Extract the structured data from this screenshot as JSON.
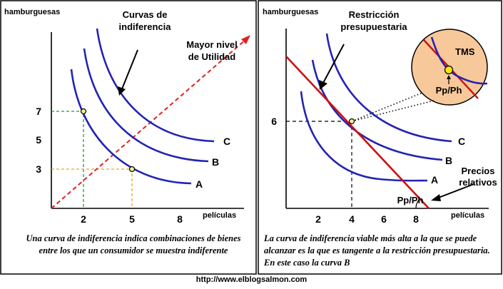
{
  "left": {
    "y_axis_label": "hamburguesas",
    "x_axis_label": "películas",
    "title_line1": "Curvas de",
    "title_line2": "indiferencia",
    "utility_line1": "Mayor nivel",
    "utility_line2": "de Utilidad",
    "y_ticks": [
      "7",
      "5",
      "3"
    ],
    "x_ticks": [
      "2",
      "5",
      "8"
    ],
    "curve_labels": [
      "C",
      "B",
      "A"
    ],
    "caption": "Una curva de indiferencia indica combinaciones de bienes entre los que un consumidor se muestra indiferente"
  },
  "right": {
    "y_axis_label": "hamburguesas",
    "x_axis_label": "películas",
    "title_line1": "Restricción",
    "title_line2": "presupuestaria",
    "y_tick": "6",
    "x_ticks": [
      "2",
      "4",
      "6",
      "8"
    ],
    "curve_labels": [
      "C",
      "B",
      "A"
    ],
    "tms_label": "TMS",
    "ratio_label": "Pp/Ph",
    "ratio_angle_label": "Pp/Ph",
    "prices_line1": "Precios",
    "prices_line2": "relativos",
    "caption": "La curva de indiferencia viable más alta a la que se puede alcanzar es la que es tangente a la restricción presupuestaria. En este caso la curva B"
  },
  "footer_url": "http://www.elblogsalmon.com",
  "colors": {
    "curve": "#2323b4",
    "budget_line": "#cc1111",
    "utility_arrow": "#dd2222",
    "green_guide": "#229933",
    "orange_guide": "#f0a020",
    "zoom_fill": "#f7c89a",
    "point_fill": "#f5f08a"
  }
}
